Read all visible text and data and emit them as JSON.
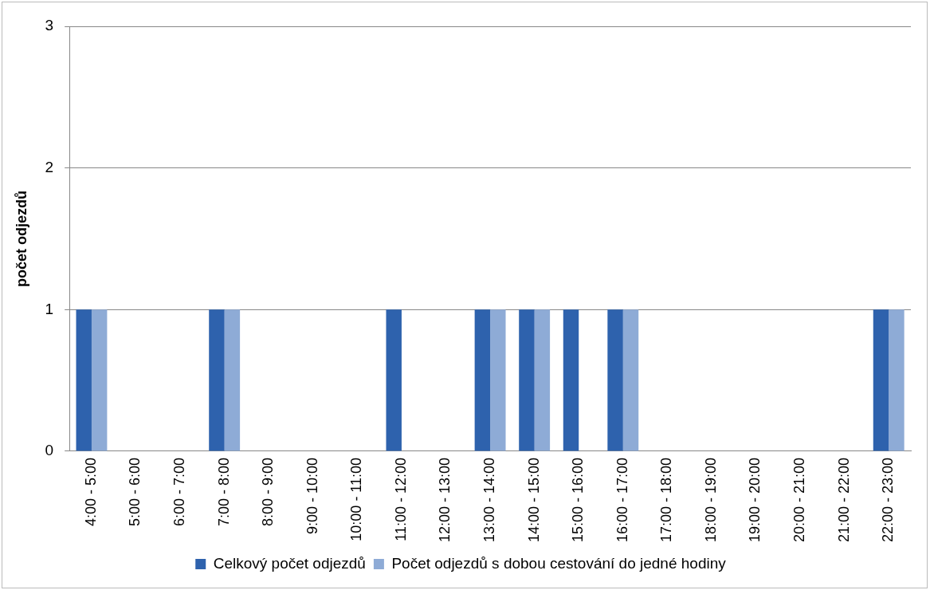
{
  "chart_data": {
    "type": "bar",
    "ylabel": "počet odjezdů",
    "categories": [
      "4:00 - 5:00",
      "5:00 - 6:00",
      "6:00 - 7:00",
      "7:00 - 8:00",
      "8:00 - 9:00",
      "9:00 - 10:00",
      "10:00 - 11:00",
      "11:00 - 12:00",
      "12:00 - 13:00",
      "13:00 - 14:00",
      "14:00 - 15:00",
      "15:00 - 16:00",
      "16:00 - 17:00",
      "17:00 - 18:00",
      "18:00 - 19:00",
      "19:00 - 20:00",
      "20:00 - 21:00",
      "21:00 - 22:00",
      "22:00 - 23:00"
    ],
    "series": [
      {
        "name": "Celkový počet odjezdů",
        "color": "#2e62ad",
        "values": [
          1,
          0,
          0,
          1,
          0,
          0,
          0,
          1,
          0,
          1,
          1,
          1,
          1,
          0,
          0,
          0,
          0,
          0,
          1
        ]
      },
      {
        "name": "Počet odjezdů s dobou cestování do jedné hodiny",
        "color": "#8eabd6",
        "values": [
          1,
          0,
          0,
          1,
          0,
          0,
          0,
          0,
          0,
          1,
          1,
          0,
          1,
          0,
          0,
          0,
          0,
          0,
          1
        ]
      }
    ],
    "ylim": [
      0,
      3
    ],
    "yticks": [
      0,
      1,
      2,
      3
    ],
    "grid": "y",
    "legend": "bottom"
  }
}
